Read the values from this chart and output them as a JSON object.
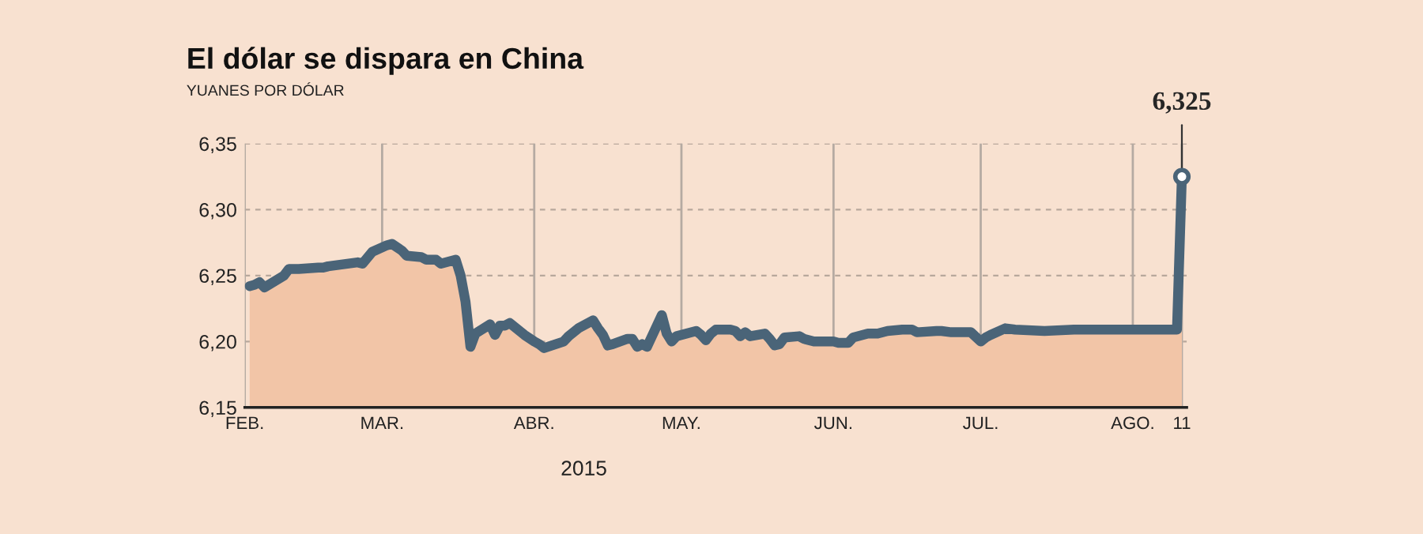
{
  "chart_data": {
    "type": "area",
    "title": "El dólar se dispara en China",
    "subtitle": "YUANES POR DÓLAR",
    "xlabel": "2015",
    "series": [
      {
        "color": "#f2c5a7",
        "x": [
          "2015-02-02",
          "2015-02-03",
          "2015-02-04",
          "2015-02-05",
          "2015-02-09",
          "2015-02-10",
          "2015-02-12",
          "2015-02-16",
          "2015-02-17",
          "2015-02-18",
          "2015-02-24",
          "2015-02-25",
          "2015-02-27",
          "2015-03-02",
          "2015-03-03",
          "2015-03-05",
          "2015-03-06",
          "2015-03-09",
          "2015-03-10",
          "2015-03-11",
          "2015-03-12",
          "2015-03-13",
          "2015-03-16",
          "2015-03-17",
          "2015-03-18",
          "2015-03-19",
          "2015-03-20",
          "2015-03-23",
          "2015-03-24",
          "2015-03-25",
          "2015-03-26",
          "2015-03-27",
          "2015-03-30",
          "2015-04-01",
          "2015-04-02",
          "2015-04-03",
          "2015-04-07",
          "2015-04-08",
          "2015-04-09",
          "2015-04-10",
          "2015-04-13",
          "2015-04-14",
          "2015-04-15",
          "2015-04-16",
          "2015-04-17",
          "2015-04-20",
          "2015-04-21",
          "2015-04-22",
          "2015-04-23",
          "2015-04-24",
          "2015-04-27",
          "2015-04-28",
          "2015-04-29",
          "2015-04-30",
          "2015-05-04",
          "2015-05-05",
          "2015-05-06",
          "2015-05-07",
          "2015-05-08",
          "2015-05-11",
          "2015-05-12",
          "2015-05-13",
          "2015-05-14",
          "2015-05-15",
          "2015-05-18",
          "2015-05-19",
          "2015-05-20",
          "2015-05-21",
          "2015-05-22",
          "2015-05-25",
          "2015-05-26",
          "2015-05-28",
          "2015-06-01",
          "2015-06-02",
          "2015-06-04",
          "2015-06-05",
          "2015-06-08",
          "2015-06-10",
          "2015-06-12",
          "2015-06-15",
          "2015-06-17",
          "2015-06-18",
          "2015-06-22",
          "2015-06-23",
          "2015-06-25",
          "2015-06-29",
          "2015-07-01",
          "2015-07-02",
          "2015-07-03",
          "2015-07-06",
          "2015-07-08",
          "2015-07-14",
          "2015-07-20",
          "2015-07-24",
          "2015-08-03",
          "2015-08-07",
          "2015-08-10",
          "2015-08-11"
        ],
        "values": [
          6.242,
          6.243,
          6.245,
          6.241,
          6.25,
          6.255,
          6.255,
          6.256,
          6.256,
          6.257,
          6.26,
          6.259,
          6.268,
          6.273,
          6.274,
          6.269,
          6.265,
          6.264,
          6.262,
          6.262,
          6.262,
          6.259,
          6.262,
          6.25,
          6.23,
          6.196,
          6.206,
          6.213,
          6.205,
          6.212,
          6.212,
          6.214,
          6.205,
          6.2,
          6.198,
          6.195,
          6.2,
          6.204,
          6.207,
          6.21,
          6.216,
          6.21,
          6.205,
          6.197,
          6.198,
          6.202,
          6.202,
          6.196,
          6.198,
          6.196,
          6.22,
          6.206,
          6.2,
          6.204,
          6.208,
          6.205,
          6.201,
          6.206,
          6.209,
          6.209,
          6.208,
          6.204,
          6.207,
          6.204,
          6.206,
          6.202,
          6.197,
          6.198,
          6.203,
          6.204,
          6.202,
          6.2,
          6.2,
          6.199,
          6.199,
          6.203,
          6.206,
          6.206,
          6.208,
          6.209,
          6.209,
          6.207,
          6.208,
          6.208,
          6.207,
          6.207,
          6.2,
          6.203,
          6.205,
          6.21,
          6.209,
          6.208,
          6.209,
          6.209,
          6.209,
          6.209,
          6.209,
          6.325
        ]
      },
      {
        "type": "line",
        "color": "#4a6478",
        "x": [
          "2015-02-02",
          "2015-02-03",
          "2015-02-04",
          "2015-02-05",
          "2015-02-09",
          "2015-02-10",
          "2015-02-12",
          "2015-02-16",
          "2015-02-17",
          "2015-02-18",
          "2015-02-24",
          "2015-02-25",
          "2015-02-27",
          "2015-03-02",
          "2015-03-03",
          "2015-03-05",
          "2015-03-06",
          "2015-03-09",
          "2015-03-10",
          "2015-03-11",
          "2015-03-12",
          "2015-03-13",
          "2015-03-16",
          "2015-03-17",
          "2015-03-18",
          "2015-03-19",
          "2015-03-20",
          "2015-03-23",
          "2015-03-24",
          "2015-03-25",
          "2015-03-26",
          "2015-03-27",
          "2015-03-30",
          "2015-04-01",
          "2015-04-02",
          "2015-04-03",
          "2015-04-07",
          "2015-04-08",
          "2015-04-09",
          "2015-04-10",
          "2015-04-13",
          "2015-04-14",
          "2015-04-15",
          "2015-04-16",
          "2015-04-17",
          "2015-04-20",
          "2015-04-21",
          "2015-04-22",
          "2015-04-23",
          "2015-04-24",
          "2015-04-27",
          "2015-04-28",
          "2015-04-29",
          "2015-04-30",
          "2015-05-04",
          "2015-05-05",
          "2015-05-06",
          "2015-05-07",
          "2015-05-08",
          "2015-05-11",
          "2015-05-12",
          "2015-05-13",
          "2015-05-14",
          "2015-05-15",
          "2015-05-18",
          "2015-05-19",
          "2015-05-20",
          "2015-05-21",
          "2015-05-22",
          "2015-05-25",
          "2015-05-26",
          "2015-05-28",
          "2015-06-01",
          "2015-06-02",
          "2015-06-04",
          "2015-06-05",
          "2015-06-08",
          "2015-06-10",
          "2015-06-12",
          "2015-06-15",
          "2015-06-17",
          "2015-06-18",
          "2015-06-22",
          "2015-06-23",
          "2015-06-25",
          "2015-06-29",
          "2015-07-01",
          "2015-07-02",
          "2015-07-03",
          "2015-07-06",
          "2015-07-08",
          "2015-07-14",
          "2015-07-20",
          "2015-07-24",
          "2015-08-03",
          "2015-08-07",
          "2015-08-10",
          "2015-08-11"
        ],
        "values": [
          6.242,
          6.243,
          6.245,
          6.241,
          6.25,
          6.255,
          6.255,
          6.256,
          6.256,
          6.257,
          6.26,
          6.259,
          6.268,
          6.273,
          6.274,
          6.269,
          6.265,
          6.264,
          6.262,
          6.262,
          6.262,
          6.259,
          6.262,
          6.25,
          6.23,
          6.196,
          6.206,
          6.213,
          6.205,
          6.212,
          6.212,
          6.214,
          6.205,
          6.2,
          6.198,
          6.195,
          6.2,
          6.204,
          6.207,
          6.21,
          6.216,
          6.21,
          6.205,
          6.197,
          6.198,
          6.202,
          6.202,
          6.196,
          6.198,
          6.196,
          6.22,
          6.206,
          6.2,
          6.204,
          6.208,
          6.205,
          6.201,
          6.206,
          6.209,
          6.209,
          6.208,
          6.204,
          6.207,
          6.204,
          6.206,
          6.202,
          6.197,
          6.198,
          6.203,
          6.204,
          6.202,
          6.2,
          6.2,
          6.199,
          6.199,
          6.203,
          6.206,
          6.206,
          6.208,
          6.209,
          6.209,
          6.207,
          6.208,
          6.208,
          6.207,
          6.207,
          6.2,
          6.203,
          6.205,
          6.21,
          6.209,
          6.208,
          6.209,
          6.209,
          6.209,
          6.209,
          6.209,
          6.325
        ]
      }
    ],
    "xlim": [
      "2015-02-01",
      "2015-08-12"
    ],
    "xticks": [
      {
        "value": "2015-02-01",
        "label": "FEB."
      },
      {
        "value": "2015-03-01",
        "label": "MAR."
      },
      {
        "value": "2015-04-01",
        "label": "ABR."
      },
      {
        "value": "2015-05-01",
        "label": "MAY."
      },
      {
        "value": "2015-06-01",
        "label": "JUN."
      },
      {
        "value": "2015-07-01",
        "label": "JUL."
      },
      {
        "value": "2015-08-01",
        "label": "AGO."
      },
      {
        "value": "2015-08-11",
        "label": "11"
      }
    ],
    "ylim": [
      6.15,
      6.35
    ],
    "yticks": [
      {
        "value": 6.15,
        "label": "6,15"
      },
      {
        "value": 6.2,
        "label": "6,20"
      },
      {
        "value": 6.25,
        "label": "6,25"
      },
      {
        "value": 6.3,
        "label": "6,30"
      },
      {
        "value": 6.35,
        "label": "6,35"
      }
    ],
    "grid": true,
    "annotations": [
      {
        "text": "6,325",
        "x": "2015-08-11",
        "y": 6.325
      }
    ]
  }
}
